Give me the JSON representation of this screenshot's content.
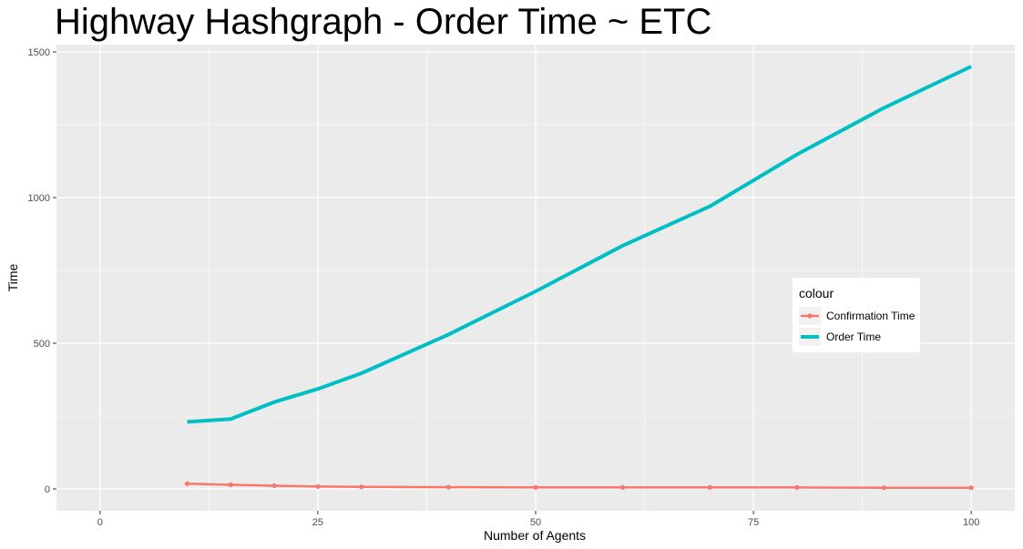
{
  "chart_data": {
    "type": "line",
    "title": "Highway Hashgraph - Order Time ~ ETC",
    "xlabel": "Number of Agents",
    "ylabel": "Time",
    "xlim": [
      -5,
      105
    ],
    "ylim": [
      -75,
      1525
    ],
    "x_ticks": [
      0,
      25,
      50,
      75,
      100
    ],
    "y_ticks": [
      0,
      500,
      1000,
      1500
    ],
    "grid": true,
    "legend": {
      "title": "colour",
      "position": "right"
    },
    "series": [
      {
        "name": "Confirmation Time",
        "color": "#F8766D",
        "markers": true,
        "x": [
          10,
          15,
          20,
          25,
          30,
          40,
          50,
          60,
          70,
          80,
          90,
          100
        ],
        "y": [
          18,
          14,
          11,
          8,
          7,
          6,
          5,
          5,
          5,
          5,
          4,
          4
        ]
      },
      {
        "name": "Order Time",
        "color": "#00BFC4",
        "markers": false,
        "x": [
          10,
          15,
          20,
          25,
          30,
          40,
          50,
          60,
          70,
          80,
          90,
          100
        ],
        "y": [
          230,
          240,
          298,
          343,
          397,
          530,
          678,
          835,
          970,
          1148,
          1308,
          1450
        ]
      }
    ]
  }
}
